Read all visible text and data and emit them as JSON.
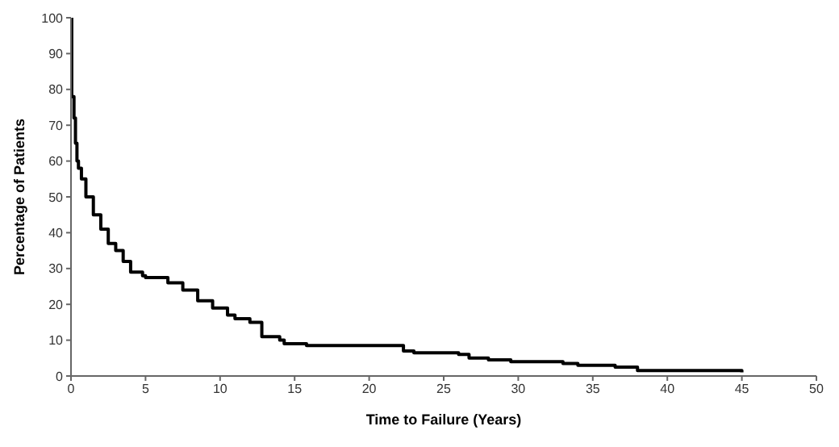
{
  "chart_data": {
    "type": "step",
    "xlabel": "Time to Failure (Years)",
    "ylabel": "Percentage of Patients",
    "x": [
      0,
      0.05,
      0.2,
      0.3,
      0.4,
      0.5,
      0.7,
      1,
      1.5,
      2,
      2.5,
      3,
      3.5,
      4,
      4.8,
      5,
      6.5,
      7.5,
      8.5,
      9.5,
      10.5,
      11,
      12,
      12.8,
      14,
      14.3,
      15.8,
      22.3,
      23,
      26,
      26.7,
      28,
      29.5,
      33,
      34,
      36.5,
      38,
      45
    ],
    "series": [
      {
        "color": "#000000",
        "values": [
          100,
          78,
          72,
          65,
          60,
          58,
          55,
          50,
          45,
          41,
          37,
          35,
          32,
          29,
          28,
          27.5,
          26,
          24,
          21,
          19,
          17,
          16,
          15,
          11,
          10,
          9,
          8.5,
          7,
          6.5,
          6,
          5,
          4.5,
          4,
          3.5,
          3,
          2.5,
          1.5,
          1
        ]
      }
    ],
    "xlim": [
      0,
      50
    ],
    "xticks": [
      0,
      5,
      10,
      15,
      20,
      25,
      30,
      35,
      40,
      45,
      50
    ],
    "ylim": [
      0,
      100
    ],
    "yticks": [
      0,
      10,
      20,
      30,
      40,
      50,
      60,
      70,
      80,
      90,
      100
    ],
    "grid": false,
    "legend": false,
    "marker": "none",
    "line_style": "solid"
  }
}
